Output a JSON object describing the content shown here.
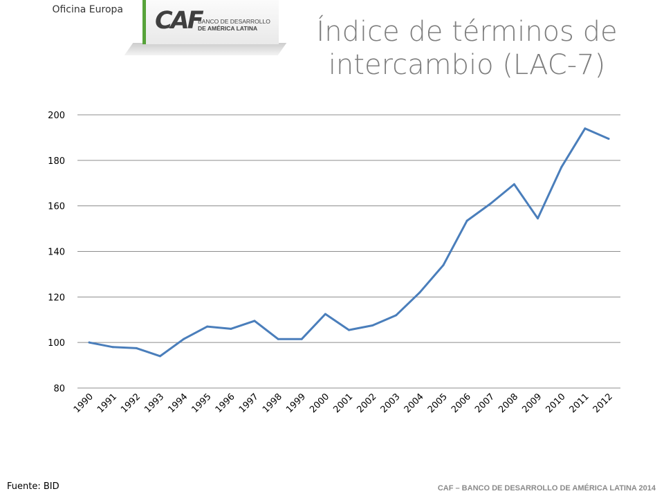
{
  "header": {
    "office": "Oficina Europa",
    "logo_mark": "CAF",
    "logo_line1": "BANCO DE DESARROLLO",
    "logo_line2": "DE AMÉRICA LATINA",
    "title_line1": "Índice de términos de",
    "title_line2": "intercambio (LAC-7)"
  },
  "colors": {
    "series": "#4a7ebb",
    "brand_green": "#57a33a",
    "title": "#7d7d7d"
  },
  "chart_data": {
    "type": "line",
    "title": "Índice de términos de intercambio (LAC-7)",
    "xlabel": "",
    "ylabel": "",
    "ylim": [
      80,
      200
    ],
    "yticks": [
      80,
      100,
      120,
      140,
      160,
      180,
      200
    ],
    "grid": true,
    "legend": "none",
    "categories": [
      "1990",
      "1991",
      "1992",
      "1993",
      "1994",
      "1995",
      "1996",
      "1997",
      "1998",
      "1999",
      "2000",
      "2001",
      "2002",
      "2003",
      "2004",
      "2005",
      "2006",
      "2007",
      "2008",
      "2009",
      "2010",
      "2011",
      "2012"
    ],
    "series": [
      {
        "values": [
          100,
          98,
          97.5,
          94,
          101.5,
          107,
          106,
          109.5,
          101.5,
          101.5,
          112.5,
          105.5,
          107.5,
          112,
          122,
          134,
          153.5,
          161,
          169.5,
          154.5,
          177,
          194,
          189.5
        ]
      }
    ]
  },
  "footer": {
    "source": "Fuente: BID",
    "org": "CAF – BANCO DE DESARROLLO DE AMÉRICA LATINA 2014"
  }
}
